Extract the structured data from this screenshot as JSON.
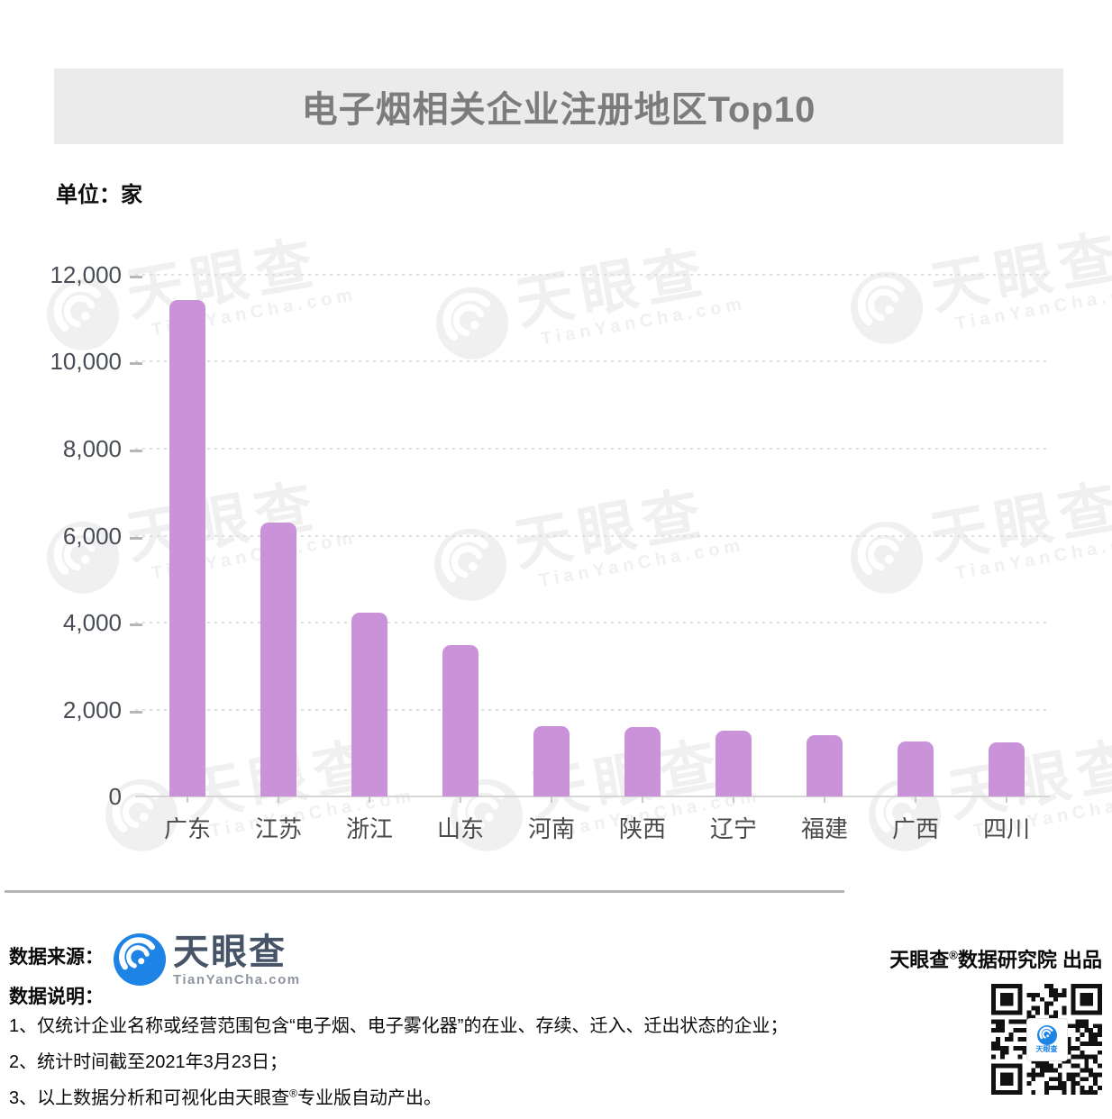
{
  "title": "电子烟相关企业注册地区Top10",
  "unit_label": "单位：家",
  "chart_data": {
    "type": "bar",
    "title": "电子烟相关企业注册地区Top10",
    "xlabel": "",
    "ylabel": "单位：家",
    "categories": [
      "广东",
      "江苏",
      "浙江",
      "山东",
      "河南",
      "陕西",
      "辽宁",
      "福建",
      "广西",
      "四川"
    ],
    "values": [
      11420,
      6300,
      4230,
      3480,
      1620,
      1600,
      1510,
      1410,
      1270,
      1240
    ],
    "ylim": [
      0,
      12000
    ],
    "yticks": [
      0,
      2000,
      4000,
      6000,
      8000,
      10000,
      12000
    ],
    "ytick_labels": [
      "0",
      "2,000",
      "4,000",
      "6,000",
      "8,000",
      "10,000",
      "12,000"
    ],
    "grid": "horizontal-dashed",
    "legend": "none",
    "bar_color": "#ca93d9"
  },
  "watermark": {
    "brand": "天眼查",
    "domain": "TianYanCha.com"
  },
  "footer": {
    "source_label": "数据来源：",
    "logo": {
      "brand": "天眼查",
      "domain": "TianYanCha.com"
    },
    "produced_by": "天眼查®数据研究院 出品",
    "notes_label": "数据说明：",
    "notes": [
      "1、仅统计企业名称或经营范围包含“电子烟、电子雾化器”的在业、存续、迁入、迁出状态的企业；",
      "2、统计时间截至2021年3月23日；",
      "3、以上数据分析和可视化由天眼查®专业版自动产出。"
    ]
  },
  "colors": {
    "bar": "#ca93d9",
    "title_band_bg": "#ebebeb",
    "title_text": "#7c7c7c",
    "logo_blue": "#1d83e4",
    "logo_dark": "#475468"
  }
}
